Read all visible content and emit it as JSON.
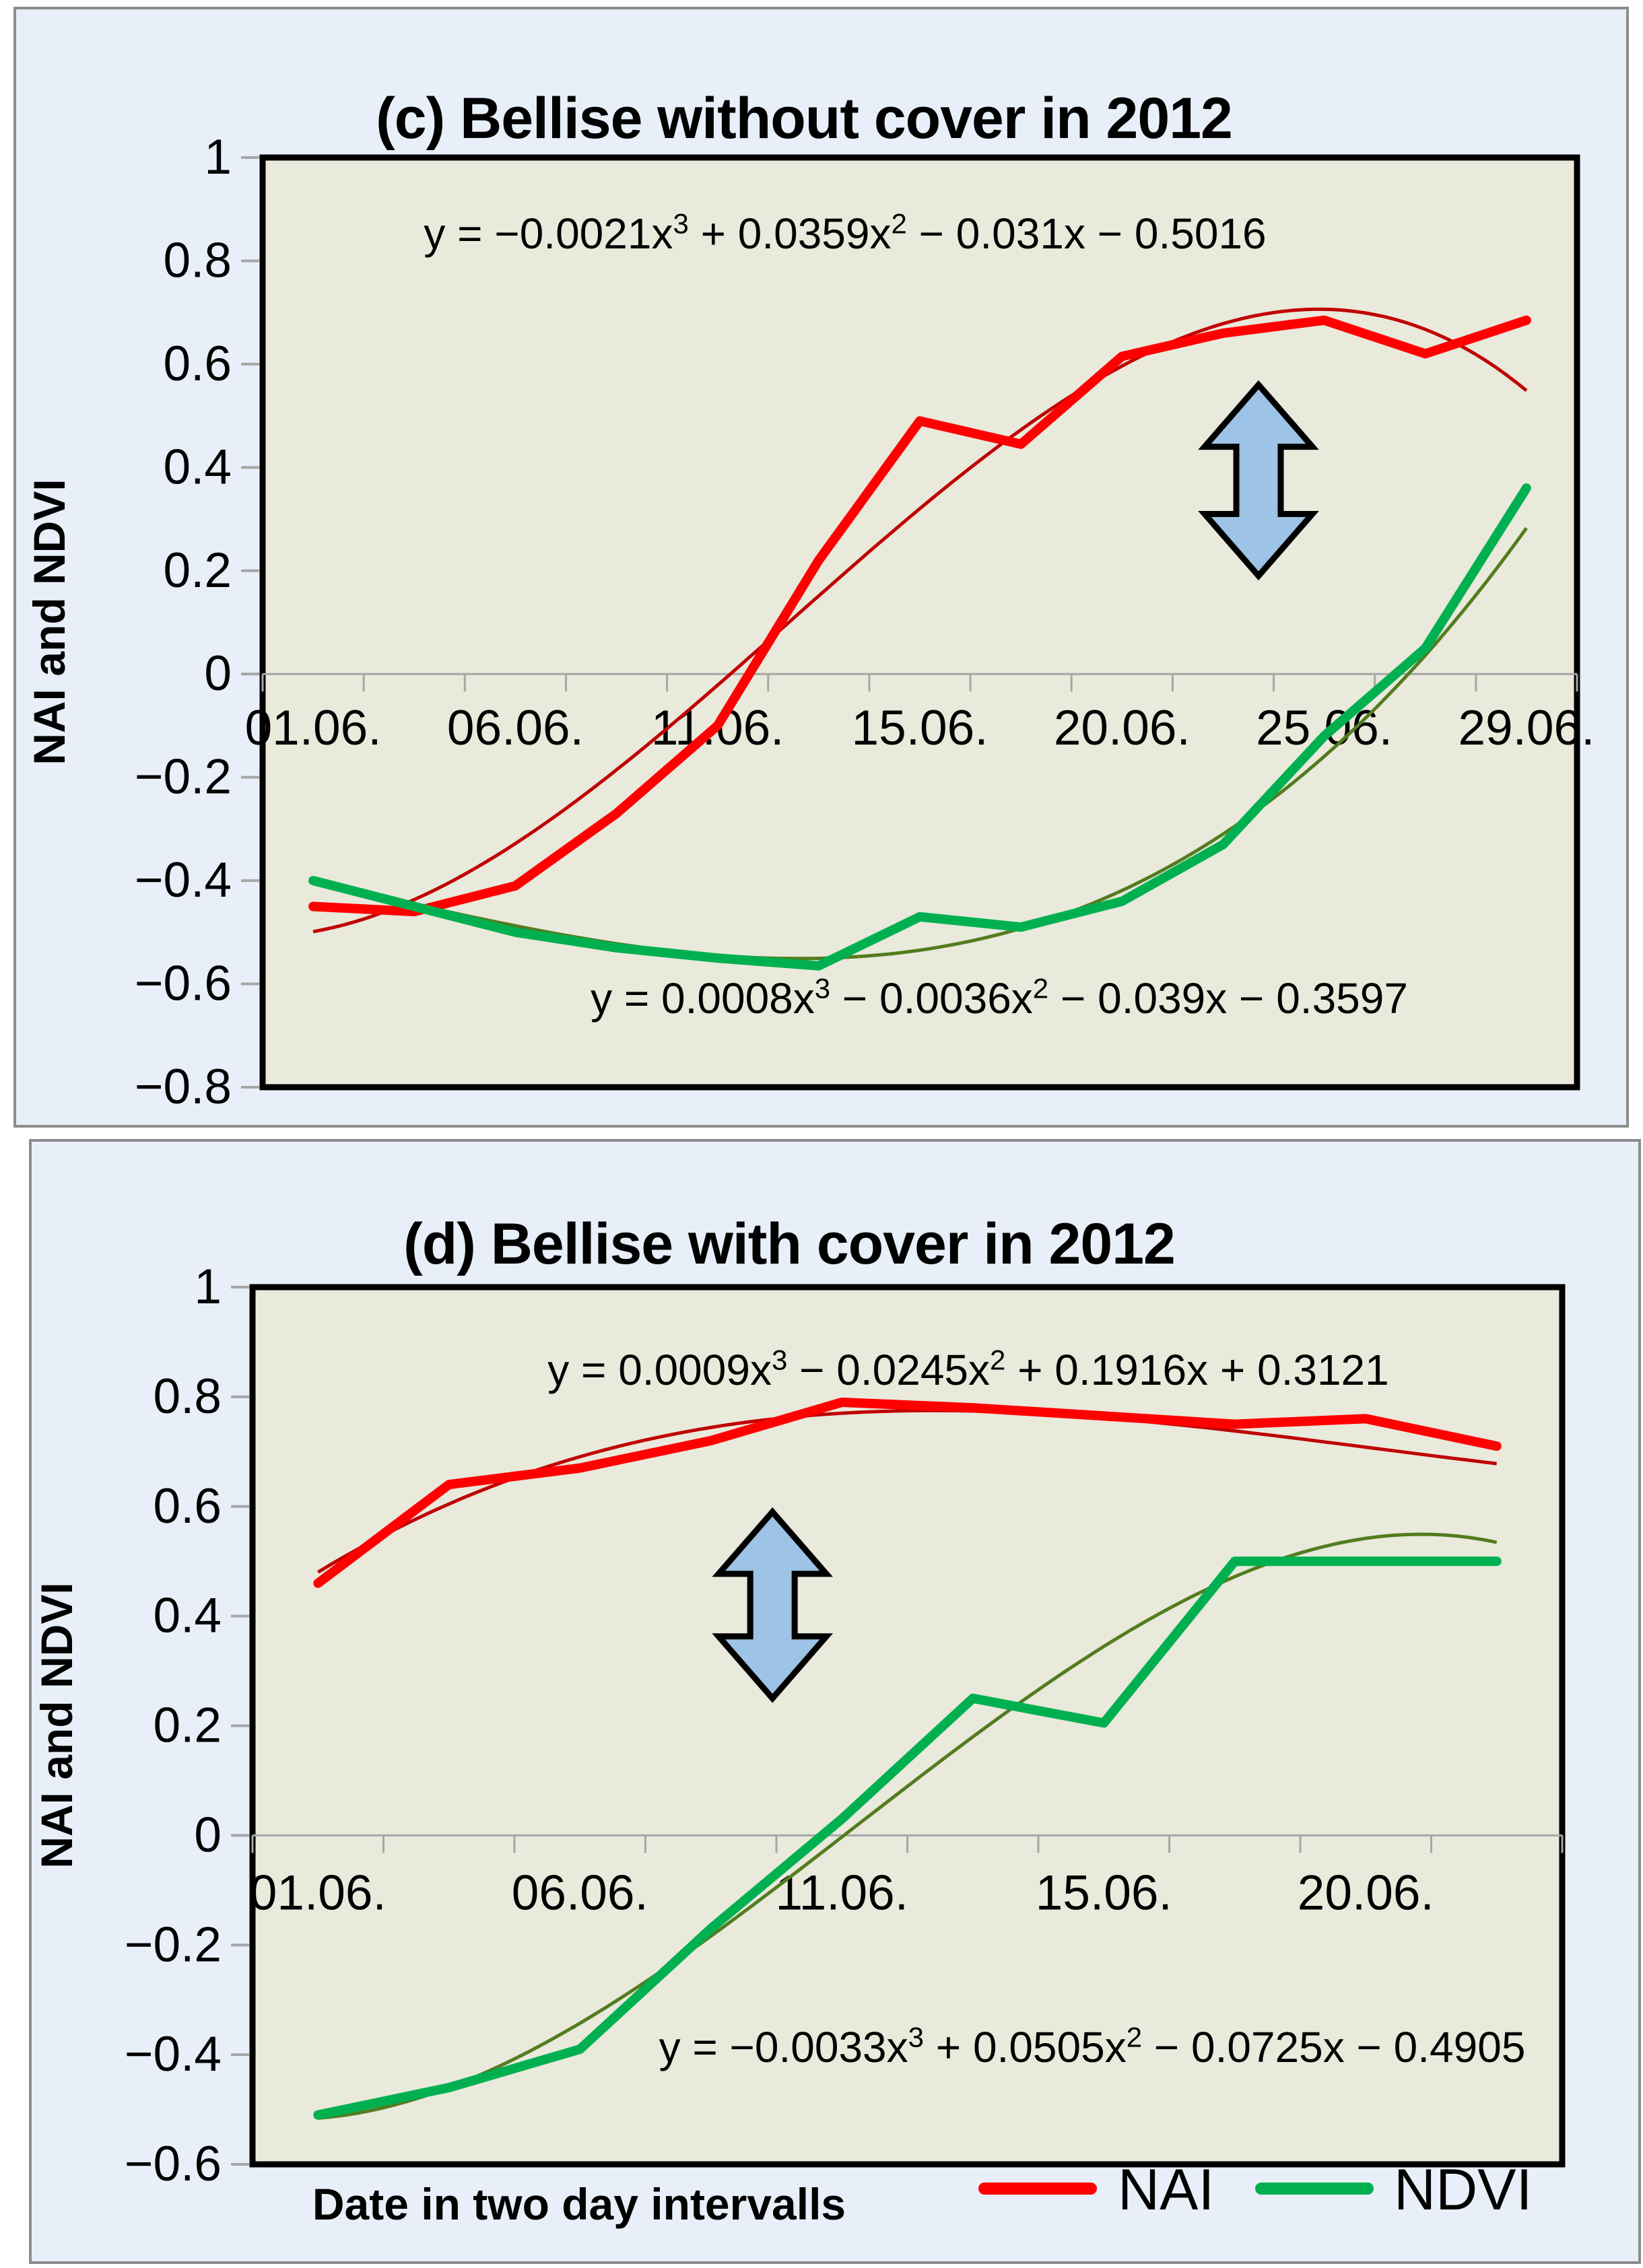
{
  "colors": {
    "page_bg": "#FFFFFF",
    "panel_bg": "#E8EFF8",
    "panel_border": "#8C8C8C",
    "plot_bg": "#E9E9DC",
    "plot_border": "#000000",
    "axis_gray": "#A6A6A6",
    "nai": "#FF0000",
    "ndvi": "#00B050",
    "nai_trend": "#C00000",
    "ndvi_trend": "#537C1E",
    "arrow_fill": "#9DC3E6",
    "arrow_stroke": "#000000"
  },
  "legend": {
    "x_axis_title": "Date in two day intervalls",
    "items": [
      {
        "label": "NAI",
        "color": "#FF0000"
      },
      {
        "label": "NDVI",
        "color": "#00B050"
      }
    ]
  },
  "chart_data": [
    {
      "id": "c",
      "type": "line",
      "title": "(c) Bellise without cover in 2012",
      "ylabel": "NAI and NDVI",
      "ylim": [
        -0.8,
        1
      ],
      "grid": false,
      "y_tick_labels": [
        "1",
        "0.8",
        "0.6",
        "0.4",
        "0.2",
        "0",
        "−0.2",
        "−0.4",
        "−0.6",
        "−0.8"
      ],
      "x": [
        1,
        2,
        3,
        4,
        5,
        6,
        7,
        8,
        9,
        10,
        11,
        12,
        13
      ],
      "x_ticks_at": [
        1,
        3,
        5,
        7,
        9,
        11,
        13
      ],
      "x_tick_labels": [
        "01.06.",
        "06.06.",
        "11.06.",
        "15.06.",
        "20.06.",
        "25.06.",
        "29.06."
      ],
      "series": [
        {
          "name": "NAI",
          "color": "#FF0000",
          "width": 14,
          "values": [
            -0.45,
            -0.46,
            -0.41,
            -0.27,
            -0.1,
            0.22,
            0.49,
            0.445,
            0.615,
            0.66,
            0.685,
            0.62,
            0.685
          ]
        },
        {
          "name": "NDVI",
          "color": "#00B050",
          "width": 14,
          "values": [
            -0.4,
            -0.45,
            -0.5,
            -0.53,
            -0.55,
            -0.565,
            -0.47,
            -0.49,
            -0.44,
            -0.33,
            -0.12,
            0.05,
            0.36
          ]
        }
      ],
      "trendlines": [
        {
          "series": "NAI",
          "color": "#C00000",
          "width": 5,
          "coefficients": [
            -0.0021,
            0.0359,
            -0.031,
            -0.5016
          ],
          "equation": {
            "p1": "y = −0.0021x",
            "s1": "3",
            "p2": " + 0.0359x",
            "s2": "2",
            "p3": " − 0.031x − 0.5016"
          }
        },
        {
          "series": "NDVI",
          "color": "#537C1E",
          "width": 5,
          "coefficients": [
            0.0008,
            -0.0036,
            -0.039,
            -0.3597
          ],
          "equation": {
            "p1": "y = 0.0008x",
            "s1": "3",
            "p2": " − 0.0036x",
            "s2": "2",
            "p3": " − 0.039x − 0.3597"
          }
        }
      ],
      "arrow": {
        "x": 10.35,
        "y_top": 0.56,
        "y_bottom": 0.19
      }
    },
    {
      "id": "d",
      "type": "line",
      "title": "(d) Bellise with cover in 2012",
      "ylabel": "NAI and NDVI",
      "ylim": [
        -0.6,
        1
      ],
      "grid": false,
      "y_tick_labels": [
        "1",
        "0.8",
        "0.6",
        "0.4",
        "0.2",
        "0",
        "−0.2",
        "−0.4",
        "−0.6"
      ],
      "x": [
        1,
        2,
        3,
        4,
        5,
        6,
        7,
        8,
        9,
        10
      ],
      "x_ticks_at": [
        1,
        3,
        5,
        7,
        9
      ],
      "x_tick_labels": [
        "01.06.",
        "06.06.",
        "11.06.",
        "15.06.",
        "20.06."
      ],
      "series": [
        {
          "name": "NAI",
          "color": "#FF0000",
          "width": 14,
          "values": [
            0.46,
            0.64,
            0.67,
            0.72,
            0.79,
            0.78,
            0.765,
            0.75,
            0.76,
            0.71
          ]
        },
        {
          "name": "NDVI",
          "color": "#00B050",
          "width": 14,
          "values": [
            -0.51,
            -0.46,
            -0.39,
            -0.17,
            0.03,
            0.25,
            0.205,
            0.5,
            0.5,
            0.5
          ]
        }
      ],
      "trendlines": [
        {
          "series": "NAI",
          "color": "#C00000",
          "width": 5,
          "coefficients": [
            0.0009,
            -0.0245,
            0.1916,
            0.3121
          ],
          "equation": {
            "p1": "y = 0.0009x",
            "s1": "3",
            "p2": " − 0.0245x",
            "s2": "2",
            "p3": " + 0.1916x + 0.3121"
          }
        },
        {
          "series": "NDVI",
          "color": "#537C1E",
          "width": 5,
          "coefficients": [
            -0.0033,
            0.0505,
            -0.0725,
            -0.4905
          ],
          "equation": {
            "p1": "y = −0.0033x",
            "s1": "3",
            "p2": " + 0.0505x",
            "s2": "2",
            "p3": " − 0.0725x − 0.4905"
          }
        }
      ],
      "arrow": {
        "x": 4.47,
        "y_top": 0.59,
        "y_bottom": 0.25
      }
    }
  ]
}
